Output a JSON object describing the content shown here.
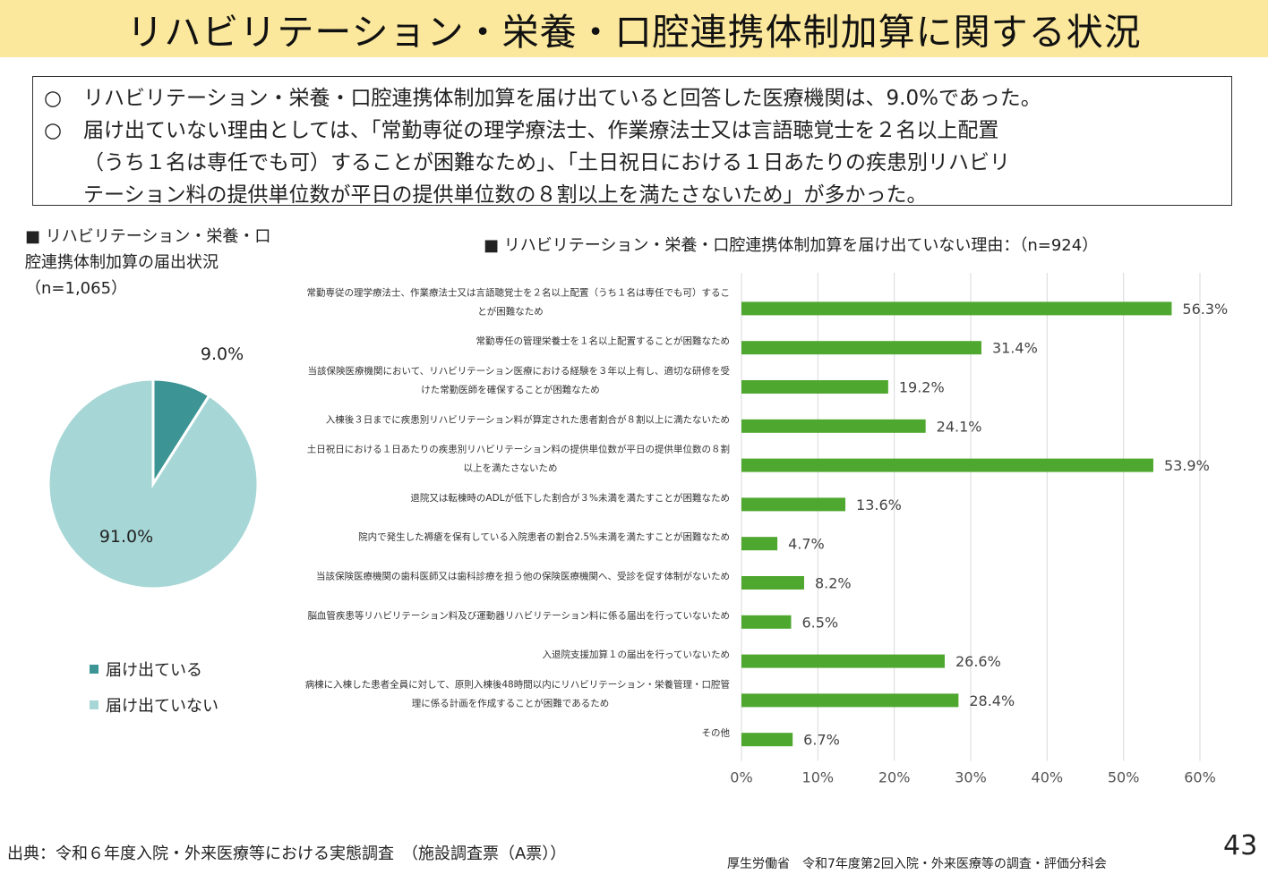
{
  "title": "リハビリテーション・栄養・口腔連携体制加算に関する状況",
  "summary": {
    "line1_bullet": "○",
    "line1": "リハビリテーション・栄養・口腔連携体制加算を届け出ていると回答した医療機関は、9.0%であった。",
    "line2_bullet": "○",
    "line2": "届け出ていない理由としては、「常勤専従の理学療法士、作業療法士又は言語聴覚士を２名以上配置",
    "line3": "（うち１名は専任でも可）することが困難なため」、「土日祝日における１日あたりの疾患別リハビリ",
    "line4": "テーション料の提供単位数が平日の提供単位数の８割以上を満たさないため」が多かった。"
  },
  "pie_title": "■ リハビリテーション・栄養・口腔連携体制加算の届出状況（n=1,065）",
  "bar_title": "■ リハビリテーション・栄養・口腔連携体制加算を届け出ていない理由：（n=924）",
  "source": "出典：令和６年度入院・外来医療等における実態調査　（施設調査票（A票））",
  "organization": "厚生労働省　令和7年度第2回入院・外来医療等の調査・評価分科会",
  "page_number": "43",
  "colors": {
    "bar": "#4ea72e",
    "pie_yes": "#3d9494",
    "pie_no": "#a6d6d6",
    "grid": "#d9d9d9"
  },
  "chart_data": [
    {
      "type": "pie",
      "slices": [
        {
          "label": "届け出ている",
          "value": 9.0,
          "display": "9.0%",
          "color": "#3d9494"
        },
        {
          "label": "届け出ていない",
          "value": 91.0,
          "display": "91.0%",
          "color": "#a6d6d6"
        }
      ],
      "legend_position": "bottom"
    },
    {
      "type": "bar",
      "orientation": "horizontal",
      "categories": [
        [
          "常勤専従の理学療法士、作業療法士又は言語聴覚士を２名以上配置（うち１名は専任でも可）するこ",
          "とが困難なため"
        ],
        [
          "常勤専任の管理栄養士を１名以上配置することが困難なため"
        ],
        [
          "当該保険医療機関において、リハビリテーション医療における経験を３年以上有し、適切な研修を受",
          "けた常勤医師を確保することが困難なため"
        ],
        [
          "入棟後３日までに疾患別リハビリテーション料が算定された患者割合が８割以上に満たないため"
        ],
        [
          "土日祝日における１日あたりの疾患別リハビリテーション料の提供単位数が平日の提供単位数の８割",
          "以上を満たさないため"
        ],
        [
          "退院又は転棟時のADLが低下した割合が３%未満を満たすことが困難なため"
        ],
        [
          "院内で発生した褥瘡を保有している入院患者の割合2.5%未満を満たすことが困難なため"
        ],
        [
          "当該保険医療機関の歯科医師又は歯科診療を担う他の保険医療機関へ、受診を促す体制がないため"
        ],
        [
          "脳血管疾患等リハビリテーション料及び運動器リハビリテーション料に係る届出を行っていないため"
        ],
        [
          "入退院支援加算１の届出を行っていないため"
        ],
        [
          "病棟に入棟した患者全員に対して、原則入棟後48時間以内にリハビリテーション・栄養管理・口腔管",
          "理に係る計画を作成することが困難であるため"
        ],
        [
          "その他"
        ]
      ],
      "values": [
        56.3,
        31.4,
        19.2,
        24.1,
        53.9,
        13.6,
        4.7,
        8.2,
        6.5,
        26.6,
        28.4,
        6.7
      ],
      "value_labels": [
        "56.3%",
        "31.4%",
        "19.2%",
        "24.1%",
        "53.9%",
        "13.6%",
        "4.7%",
        "8.2%",
        "6.5%",
        "26.6%",
        "28.4%",
        "6.7%"
      ],
      "xlim": [
        0,
        60
      ],
      "xticks": [
        "0%",
        "10%",
        "20%",
        "30%",
        "40%",
        "50%",
        "60%"
      ],
      "grid": true
    }
  ]
}
